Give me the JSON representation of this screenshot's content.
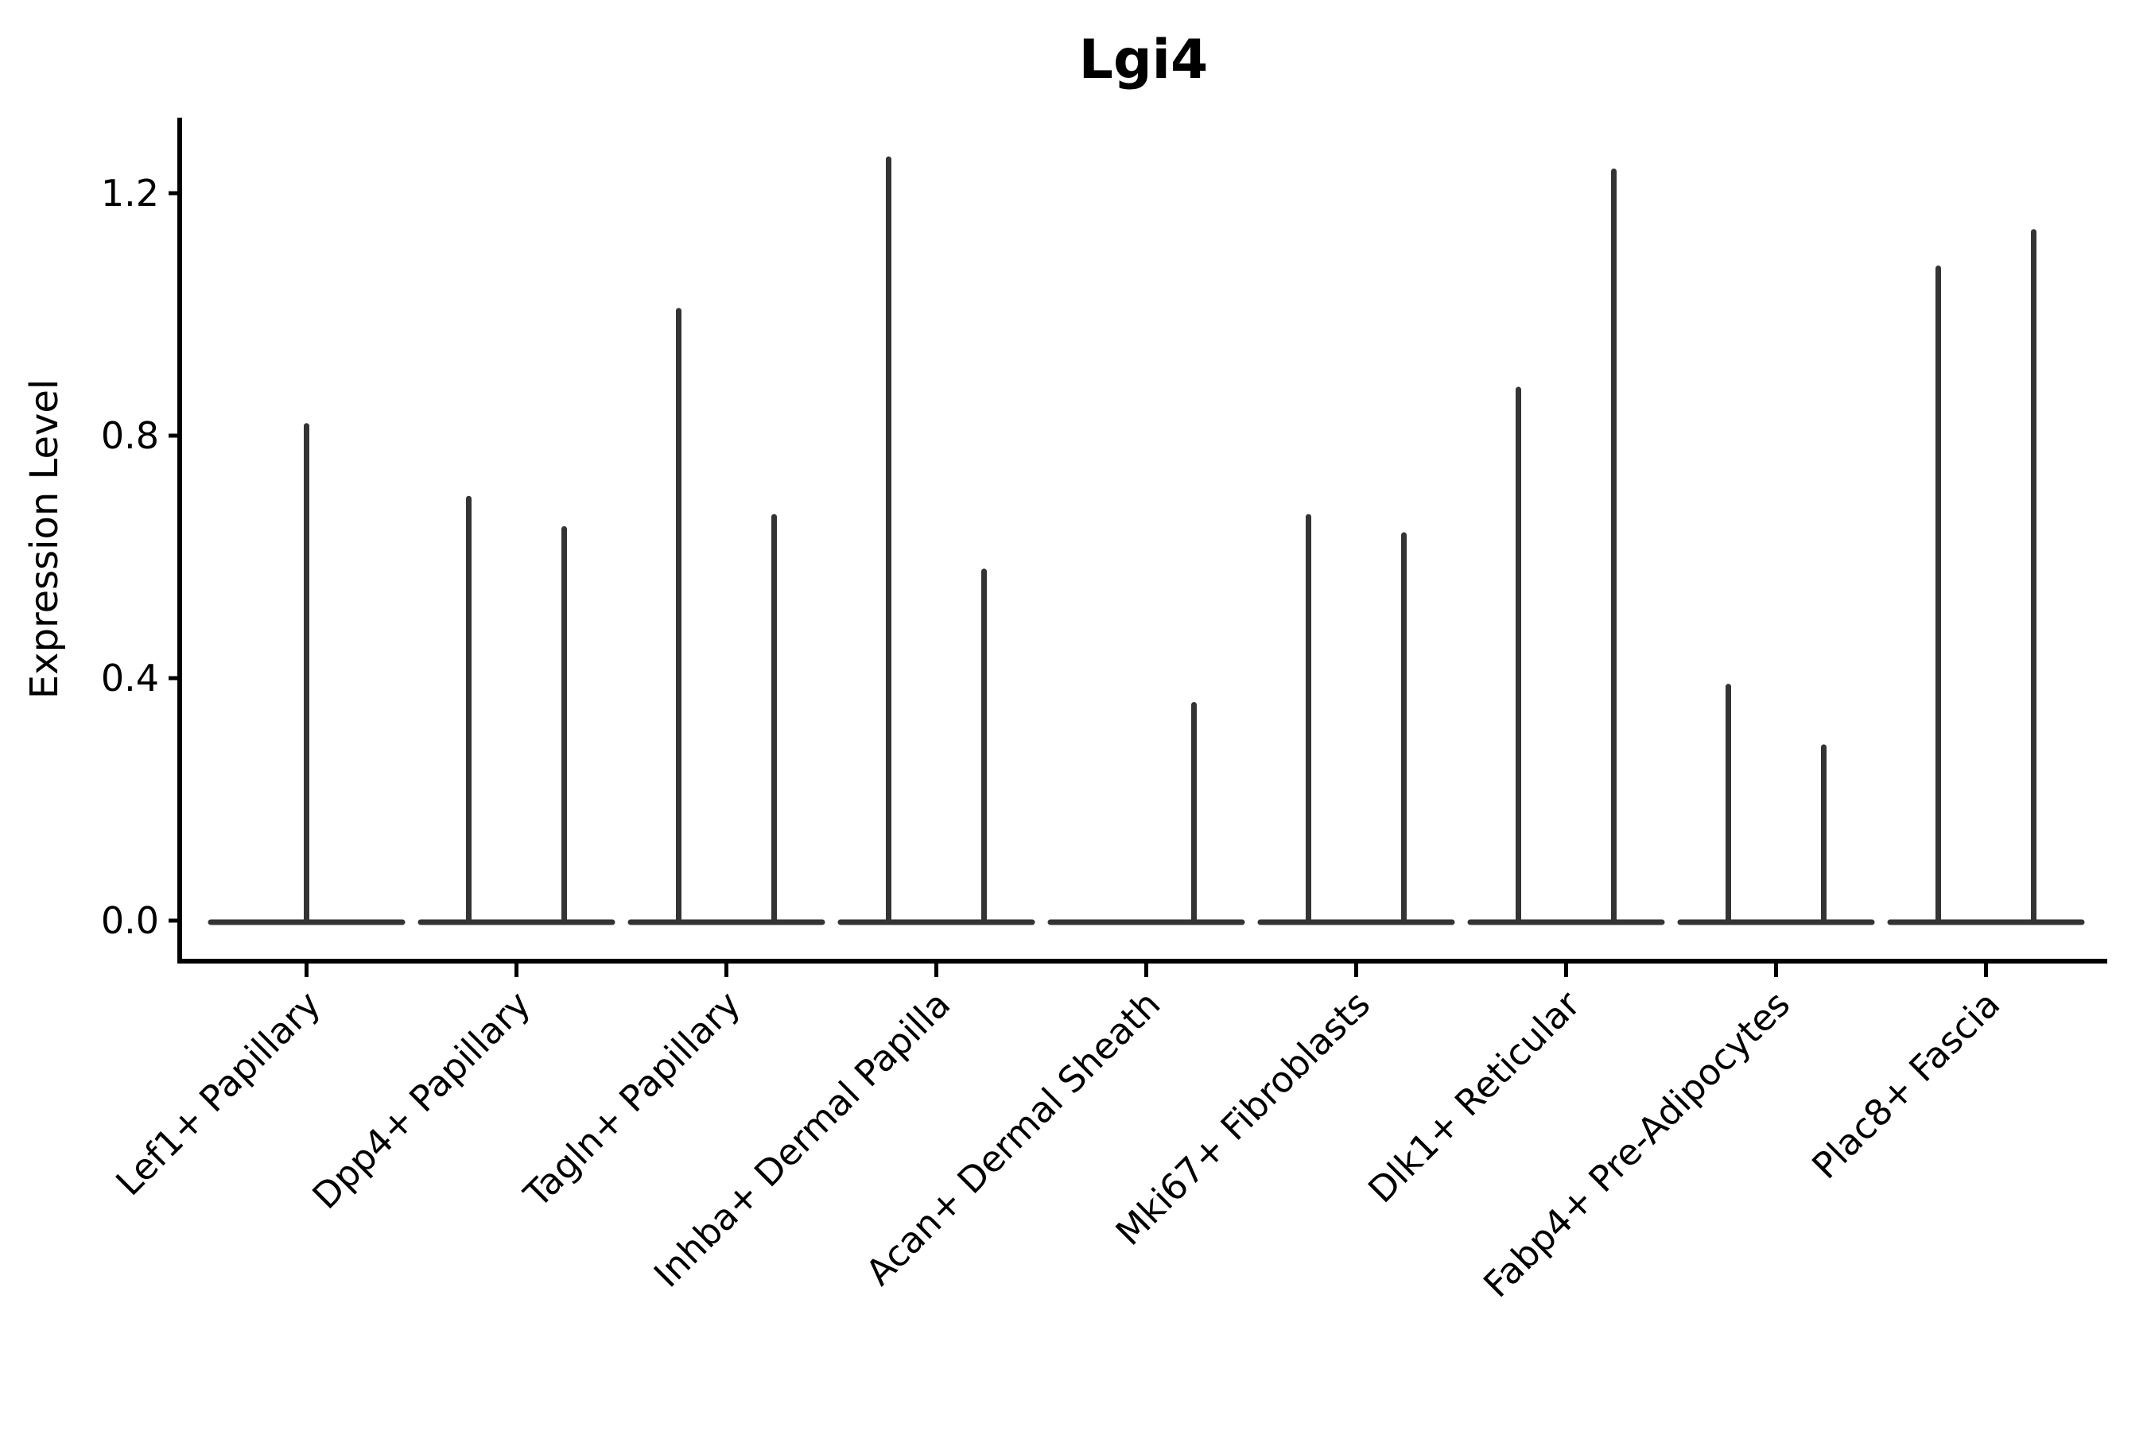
{
  "title": "Lgi4",
  "ylabel": "Expression Level",
  "colors": {
    "violin": "#343434",
    "axis": "#000000",
    "text": "#000000",
    "background": "#ffffff"
  },
  "chart_data": {
    "type": "violin",
    "title": "Lgi4",
    "xlabel": "",
    "ylabel": "Expression Level",
    "legend": "none",
    "grid": false,
    "ylim": [
      0,
      1.33
    ],
    "y_ticks": [
      {
        "value": 0.0,
        "label": "0.0"
      },
      {
        "value": 0.4,
        "label": "0.4"
      },
      {
        "value": 0.8,
        "label": "0.8"
      },
      {
        "value": 1.2,
        "label": "1.2"
      }
    ],
    "categories": [
      "Lef1+ Papillary",
      "Dpp4+ Papillary",
      "Tagln+ Papillary",
      "Inhba+ Dermal Papilla",
      "Acan+ Dermal Sheath",
      "Mki67+ Fibroblasts",
      "Dlk1+ Reticular",
      "Fabp4+ Pre-Adipocytes",
      "Plac8+ Fascia"
    ],
    "violins": [
      {
        "category": "Lef1+ Papillary",
        "baseline": 0.0,
        "spikes": [
          {
            "pos": "center",
            "max": 0.82
          }
        ]
      },
      {
        "category": "Dpp4+ Papillary",
        "baseline": 0.0,
        "spikes": [
          {
            "pos": "left",
            "max": 0.7
          },
          {
            "pos": "right",
            "max": 0.65
          }
        ]
      },
      {
        "category": "Tagln+ Papillary",
        "baseline": 0.0,
        "spikes": [
          {
            "pos": "left",
            "max": 1.01
          },
          {
            "pos": "right",
            "max": 0.67
          }
        ]
      },
      {
        "category": "Inhba+ Dermal Papilla",
        "baseline": 0.0,
        "spikes": [
          {
            "pos": "left",
            "max": 1.26
          },
          {
            "pos": "right",
            "max": 0.58
          }
        ]
      },
      {
        "category": "Acan+ Dermal Sheath",
        "baseline": 0.0,
        "spikes": [
          {
            "pos": "right",
            "max": 0.36
          }
        ]
      },
      {
        "category": "Mki67+ Fibroblasts",
        "baseline": 0.0,
        "spikes": [
          {
            "pos": "left",
            "max": 0.67
          },
          {
            "pos": "right",
            "max": 0.64
          }
        ]
      },
      {
        "category": "Dlk1+ Reticular",
        "baseline": 0.0,
        "spikes": [
          {
            "pos": "left",
            "max": 0.88
          },
          {
            "pos": "right",
            "max": 1.24
          }
        ]
      },
      {
        "category": "Fabp4+ Pre-Adipocytes",
        "baseline": 0.0,
        "spikes": [
          {
            "pos": "left",
            "max": 0.39
          },
          {
            "pos": "right",
            "max": 0.29
          }
        ]
      },
      {
        "category": "Plac8+ Fascia",
        "baseline": 0.0,
        "spikes": [
          {
            "pos": "left",
            "max": 1.08
          },
          {
            "pos": "right",
            "max": 1.14
          }
        ]
      }
    ]
  }
}
